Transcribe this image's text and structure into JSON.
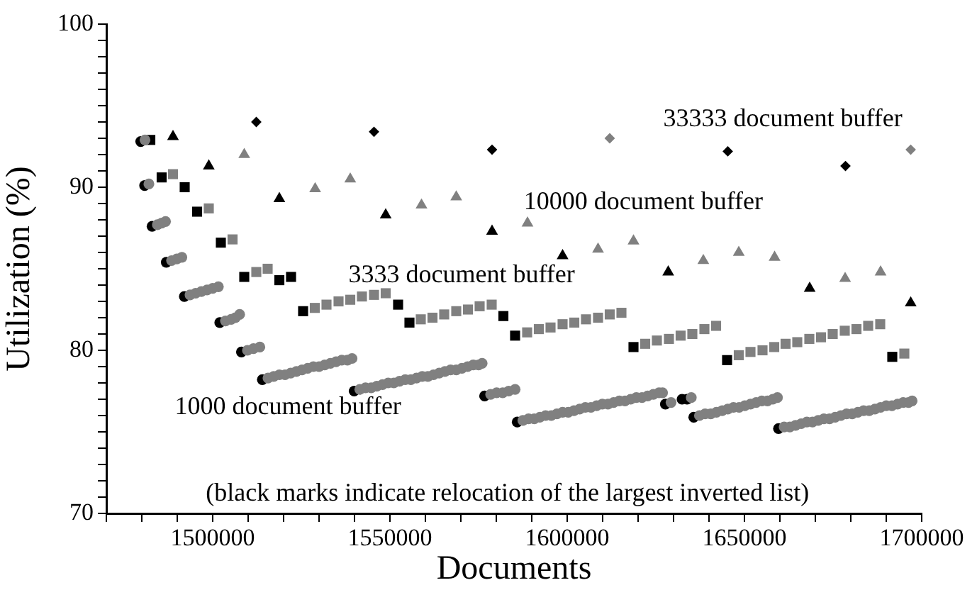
{
  "chart_data": {
    "type": "scatter",
    "xlabel": "Documents",
    "ylabel": "Utilization (%)",
    "xlim": [
      1470000,
      1700000
    ],
    "ylim": [
      70,
      100
    ],
    "xticks": [
      {
        "value": 1470000,
        "label": null
      },
      {
        "value": 1480000,
        "label": null
      },
      {
        "value": 1490000,
        "label": null
      },
      1500000,
      {
        "value": 1510000,
        "label": null
      },
      {
        "value": 1520000,
        "label": null
      },
      {
        "value": 1530000,
        "label": null
      },
      {
        "value": 1540000,
        "label": null
      },
      1550000,
      {
        "value": 1560000,
        "label": null
      },
      {
        "value": 1570000,
        "label": null
      },
      {
        "value": 1580000,
        "label": null
      },
      {
        "value": 1590000,
        "label": null
      },
      1600000,
      {
        "value": 1610000,
        "label": null
      },
      {
        "value": 1620000,
        "label": null
      },
      {
        "value": 1630000,
        "label": null
      },
      {
        "value": 1640000,
        "label": null
      },
      1650000,
      {
        "value": 1660000,
        "label": null
      },
      {
        "value": 1670000,
        "label": null
      },
      {
        "value": 1680000,
        "label": null
      },
      {
        "value": 1690000,
        "label": null
      },
      1700000
    ],
    "yticks": [
      70,
      {
        "value": 71,
        "label": null
      },
      {
        "value": 72,
        "label": null
      },
      {
        "value": 73,
        "label": null
      },
      {
        "value": 74,
        "label": null
      },
      {
        "value": 75,
        "label": null
      },
      {
        "value": 76,
        "label": null
      },
      {
        "value": 77,
        "label": null
      },
      {
        "value": 78,
        "label": null
      },
      {
        "value": 79,
        "label": null
      },
      80,
      {
        "value": 81,
        "label": null
      },
      {
        "value": 82,
        "label": null
      },
      {
        "value": 83,
        "label": null
      },
      {
        "value": 84,
        "label": null
      },
      {
        "value": 85,
        "label": null
      },
      {
        "value": 86,
        "label": null
      },
      {
        "value": 87,
        "label": null
      },
      {
        "value": 88,
        "label": null
      },
      {
        "value": 89,
        "label": null
      },
      90,
      {
        "value": 91,
        "label": null
      },
      {
        "value": 92,
        "label": null
      },
      {
        "value": 93,
        "label": null
      },
      {
        "value": 94,
        "label": null
      },
      {
        "value": 95,
        "label": null
      },
      {
        "value": 96,
        "label": null
      },
      {
        "value": 97,
        "label": null
      },
      {
        "value": 98,
        "label": null
      },
      {
        "value": 99,
        "label": null
      },
      100
    ],
    "annotations": [
      "(black marks indicate relocation of the largest inverted list)"
    ],
    "series": [
      {
        "name": "1000 document buffer",
        "marker": "circle",
        "x": [
          1479700,
          1480900,
          1480800,
          1482000,
          1482900,
          1484400,
          1485600,
          1486700,
          1486900,
          1488400,
          1489900,
          1491300,
          1492000,
          1493600,
          1495200,
          1496800,
          1498400,
          1500000,
          1501600,
          1502000,
          1503600,
          1505200,
          1506400,
          1507600,
          1508100,
          1509800,
          1511500,
          1513300,
          1514000,
          1515600,
          1517200,
          1518800,
          1520400,
          1522000,
          1523600,
          1525200,
          1526800,
          1528400,
          1530000,
          1531600,
          1533200,
          1534800,
          1536400,
          1538000,
          1539300,
          1539900,
          1541500,
          1543100,
          1544700,
          1546300,
          1547900,
          1549500,
          1551100,
          1552700,
          1554300,
          1555900,
          1557500,
          1559100,
          1560700,
          1562300,
          1563900,
          1565500,
          1567100,
          1568700,
          1570300,
          1571900,
          1573500,
          1575000,
          1576000,
          1576700,
          1578400,
          1580100,
          1581800,
          1583500,
          1585300,
          1585900,
          1587500,
          1589100,
          1590700,
          1592300,
          1593900,
          1595500,
          1597100,
          1598700,
          1600300,
          1601900,
          1603500,
          1605100,
          1606700,
          1608300,
          1609900,
          1611500,
          1613100,
          1614700,
          1616300,
          1617900,
          1619500,
          1621100,
          1622700,
          1624300,
          1625900,
          1626900,
          1627700,
          1629300,
          1632400,
          1633800,
          1635000,
          1635700,
          1637300,
          1638900,
          1640500,
          1642100,
          1643700,
          1645300,
          1646900,
          1648500,
          1650100,
          1651700,
          1653300,
          1654900,
          1656500,
          1658000,
          1659300,
          1659600,
          1661200,
          1662800,
          1664400,
          1666000,
          1667600,
          1669200,
          1670800,
          1672400,
          1674000,
          1675600,
          1677200,
          1678800,
          1680400,
          1682000,
          1683600,
          1685200,
          1686800,
          1688400,
          1690000,
          1691600,
          1693200,
          1694800,
          1696300,
          1697300
        ],
        "values": [
          92.8,
          92.9,
          90.1,
          90.2,
          87.6,
          87.7,
          87.8,
          87.9,
          85.4,
          85.5,
          85.6,
          85.7,
          83.3,
          83.4,
          83.5,
          83.6,
          83.7,
          83.8,
          83.9,
          81.7,
          81.8,
          81.9,
          82.0,
          82.2,
          79.9,
          80.0,
          80.1,
          80.2,
          78.2,
          78.3,
          78.4,
          78.5,
          78.5,
          78.6,
          78.7,
          78.8,
          78.9,
          79.0,
          79.0,
          79.1,
          79.2,
          79.3,
          79.4,
          79.4,
          79.5,
          77.5,
          77.6,
          77.7,
          77.7,
          77.8,
          77.9,
          78.0,
          78.0,
          78.1,
          78.2,
          78.2,
          78.3,
          78.4,
          78.4,
          78.5,
          78.6,
          78.7,
          78.8,
          78.8,
          78.9,
          79.0,
          79.1,
          79.1,
          79.2,
          77.2,
          77.3,
          77.4,
          77.4,
          77.5,
          77.6,
          75.6,
          75.7,
          75.8,
          75.8,
          75.9,
          76.0,
          76.0,
          76.1,
          76.2,
          76.2,
          76.3,
          76.4,
          76.5,
          76.5,
          76.6,
          76.7,
          76.7,
          76.8,
          76.9,
          76.9,
          77.0,
          77.1,
          77.1,
          77.2,
          77.3,
          77.4,
          77.4,
          76.7,
          76.8,
          77.0,
          77.0,
          77.1,
          75.9,
          76.0,
          76.1,
          76.1,
          76.2,
          76.3,
          76.4,
          76.5,
          76.5,
          76.6,
          76.7,
          76.8,
          76.9,
          76.9,
          77.0,
          77.1,
          75.2,
          75.3,
          75.3,
          75.4,
          75.5,
          75.6,
          75.6,
          75.7,
          75.8,
          75.8,
          75.9,
          76.0,
          76.1,
          76.1,
          76.2,
          76.3,
          76.3,
          76.4,
          76.5,
          76.6,
          76.6,
          76.7,
          76.8,
          76.8,
          76.9
        ],
        "colors": [
          "#000000",
          "#808080",
          "#000000",
          "#808080",
          "#000000",
          "#808080",
          "#808080",
          "#808080",
          "#000000",
          "#808080",
          "#808080",
          "#808080",
          "#000000",
          "#808080",
          "#808080",
          "#808080",
          "#808080",
          "#808080",
          "#808080",
          "#000000",
          "#808080",
          "#808080",
          "#808080",
          "#808080",
          "#000000",
          "#808080",
          "#808080",
          "#808080",
          "#000000",
          "#808080",
          "#808080",
          "#808080",
          "#808080",
          "#808080",
          "#808080",
          "#808080",
          "#808080",
          "#808080",
          "#808080",
          "#808080",
          "#808080",
          "#808080",
          "#808080",
          "#808080",
          "#808080",
          "#000000",
          "#808080",
          "#808080",
          "#808080",
          "#808080",
          "#808080",
          "#808080",
          "#808080",
          "#808080",
          "#808080",
          "#808080",
          "#808080",
          "#808080",
          "#808080",
          "#808080",
          "#808080",
          "#808080",
          "#808080",
          "#808080",
          "#808080",
          "#808080",
          "#808080",
          "#808080",
          "#808080",
          "#000000",
          "#808080",
          "#808080",
          "#808080",
          "#808080",
          "#808080",
          "#000000",
          "#808080",
          "#808080",
          "#808080",
          "#808080",
          "#808080",
          "#808080",
          "#808080",
          "#808080",
          "#808080",
          "#808080",
          "#808080",
          "#808080",
          "#808080",
          "#808080",
          "#808080",
          "#808080",
          "#808080",
          "#808080",
          "#808080",
          "#808080",
          "#808080",
          "#808080",
          "#808080",
          "#808080",
          "#808080",
          "#808080",
          "#000000",
          "#808080",
          "#000000",
          "#000000",
          "#808080",
          "#000000",
          "#808080",
          "#808080",
          "#808080",
          "#808080",
          "#808080",
          "#808080",
          "#808080",
          "#808080",
          "#808080",
          "#808080",
          "#808080",
          "#808080",
          "#808080",
          "#808080",
          "#808080",
          "#000000",
          "#808080",
          "#808080",
          "#808080",
          "#808080",
          "#808080",
          "#808080",
          "#808080",
          "#808080",
          "#808080",
          "#808080",
          "#808080",
          "#808080",
          "#808080",
          "#808080",
          "#808080",
          "#808080",
          "#808080",
          "#808080",
          "#808080",
          "#808080",
          "#808080",
          "#808080",
          "#808080",
          "#808080"
        ]
      },
      {
        "name": "3333 document buffer",
        "marker": "square",
        "x": [
          1482400,
          1485600,
          1488800,
          1492100,
          1495600,
          1498900,
          1502300,
          1505600,
          1508900,
          1512300,
          1515500,
          1518800,
          1522100,
          1525500,
          1528800,
          1532100,
          1535500,
          1538800,
          1542100,
          1545500,
          1548800,
          1552300,
          1555500,
          1558700,
          1562000,
          1565300,
          1568700,
          1572000,
          1575300,
          1578700,
          1582000,
          1585300,
          1588700,
          1592000,
          1595300,
          1598700,
          1602000,
          1605300,
          1608700,
          1612000,
          1615300,
          1618700,
          1622000,
          1625300,
          1628700,
          1632000,
          1635300,
          1638700,
          1642000,
          1645100,
          1648400,
          1651700,
          1655100,
          1658400,
          1661600,
          1664900,
          1668300,
          1671600,
          1674900,
          1678300,
          1681600,
          1684900,
          1688300,
          1691700,
          1695100
        ],
        "values": [
          92.9,
          90.6,
          90.8,
          90.0,
          88.5,
          88.7,
          86.6,
          86.8,
          84.5,
          84.8,
          85.0,
          84.3,
          84.5,
          82.4,
          82.6,
          82.8,
          83.0,
          83.1,
          83.3,
          83.4,
          83.5,
          82.8,
          81.7,
          81.9,
          82.0,
          82.2,
          82.4,
          82.5,
          82.7,
          82.8,
          82.1,
          80.9,
          81.1,
          81.3,
          81.4,
          81.6,
          81.7,
          81.9,
          82.0,
          82.2,
          82.3,
          80.2,
          80.4,
          80.6,
          80.7,
          80.9,
          81.0,
          81.3,
          81.5,
          79.4,
          79.7,
          79.9,
          80.0,
          80.2,
          80.4,
          80.5,
          80.7,
          80.8,
          81.0,
          81.2,
          81.3,
          81.5,
          81.6,
          79.6,
          79.8
        ],
        "colors": [
          "#000000",
          "#000000",
          "#808080",
          "#000000",
          "#000000",
          "#808080",
          "#000000",
          "#808080",
          "#000000",
          "#808080",
          "#808080",
          "#000000",
          "#000000",
          "#000000",
          "#808080",
          "#808080",
          "#808080",
          "#808080",
          "#808080",
          "#808080",
          "#808080",
          "#000000",
          "#000000",
          "#808080",
          "#808080",
          "#808080",
          "#808080",
          "#808080",
          "#808080",
          "#808080",
          "#000000",
          "#000000",
          "#808080",
          "#808080",
          "#808080",
          "#808080",
          "#808080",
          "#808080",
          "#808080",
          "#808080",
          "#808080",
          "#000000",
          "#808080",
          "#808080",
          "#808080",
          "#808080",
          "#808080",
          "#808080",
          "#808080",
          "#000000",
          "#808080",
          "#808080",
          "#808080",
          "#808080",
          "#808080",
          "#808080",
          "#808080",
          "#808080",
          "#808080",
          "#808080",
          "#808080",
          "#808080",
          "#808080",
          "#000000",
          "#808080"
        ]
      },
      {
        "name": "10000 document buffer",
        "marker": "triangle",
        "x": [
          1488800,
          1498900,
          1508900,
          1518800,
          1528900,
          1538800,
          1548800,
          1558900,
          1568700,
          1578800,
          1588800,
          1598700,
          1608700,
          1618700,
          1628500,
          1638400,
          1648400,
          1658500,
          1668400,
          1678400,
          1688400,
          1696900
        ],
        "values": [
          93.1,
          91.3,
          92.0,
          89.3,
          89.9,
          90.5,
          88.3,
          88.9,
          89.4,
          87.3,
          87.8,
          85.8,
          86.2,
          86.7,
          84.8,
          85.5,
          86.0,
          85.7,
          83.8,
          84.4,
          84.8,
          82.9
        ],
        "colors": [
          "#000000",
          "#000000",
          "#808080",
          "#000000",
          "#808080",
          "#808080",
          "#000000",
          "#808080",
          "#808080",
          "#000000",
          "#808080",
          "#000000",
          "#808080",
          "#808080",
          "#000000",
          "#808080",
          "#808080",
          "#808080",
          "#000000",
          "#808080",
          "#808080",
          "#000000"
        ]
      },
      {
        "name": "33333 document buffer",
        "marker": "diamond",
        "x": [
          1512300,
          1545500,
          1578800,
          1612000,
          1645300,
          1678500,
          1696900
        ],
        "values": [
          94.0,
          93.4,
          92.3,
          93.0,
          92.2,
          91.3,
          92.3
        ],
        "colors": [
          "#000000",
          "#000000",
          "#000000",
          "#808080",
          "#000000",
          "#000000",
          "#808080"
        ]
      }
    ]
  }
}
